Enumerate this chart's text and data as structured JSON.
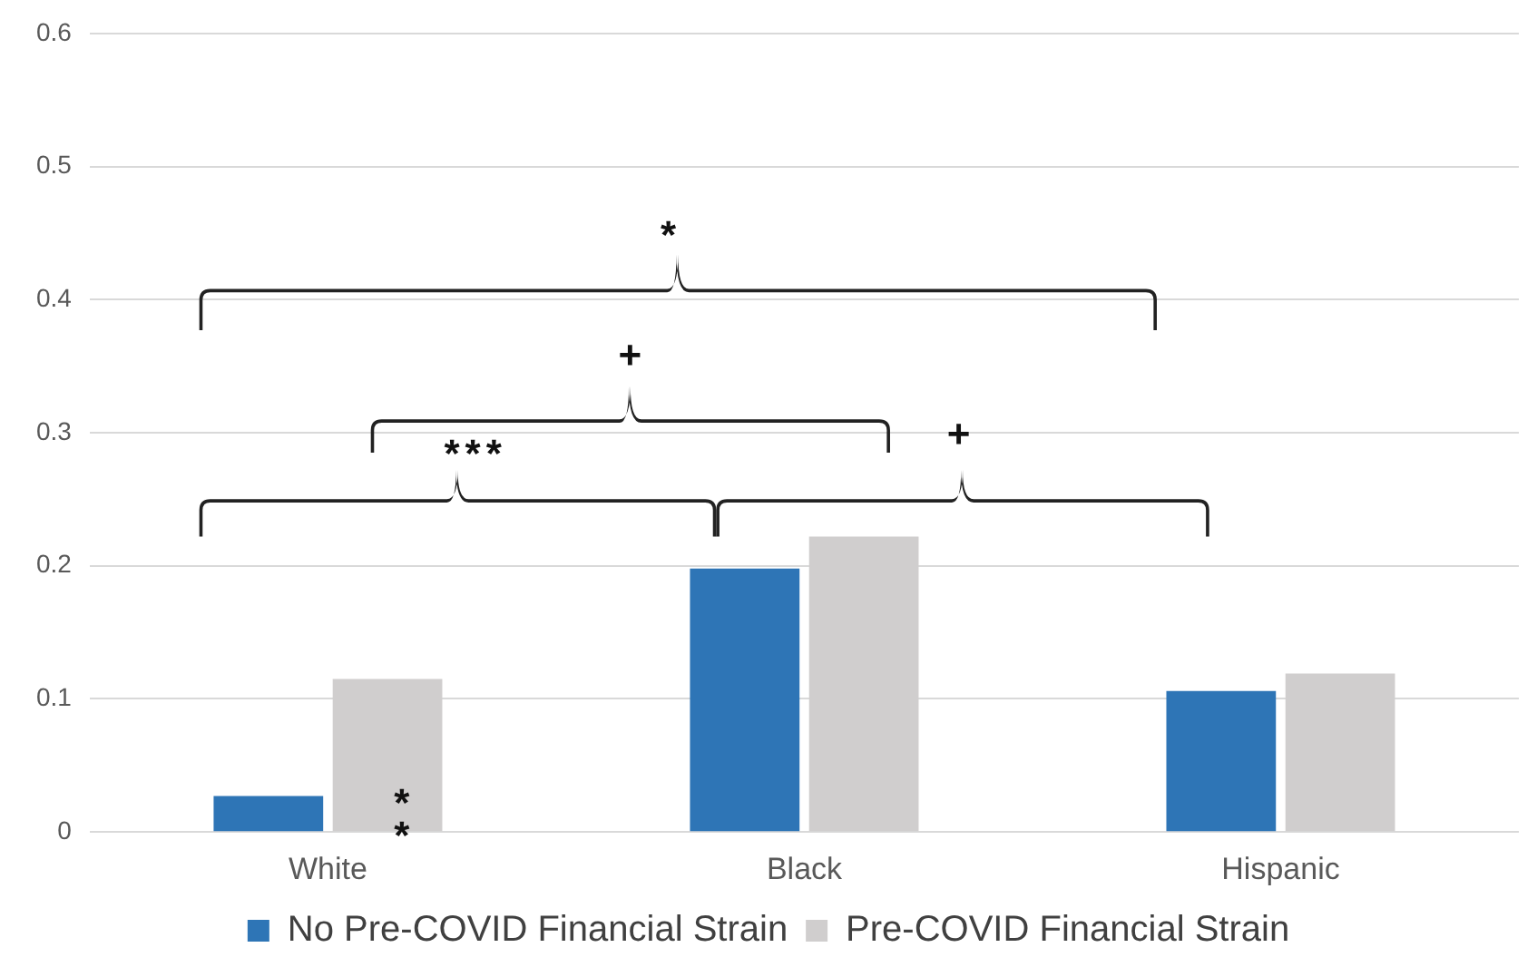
{
  "chart_data": {
    "type": "bar",
    "categories": [
      "White",
      "Black",
      "Hispanic"
    ],
    "series": [
      {
        "name": "No Pre-COVID Financial Strain",
        "color": "#2e75b6",
        "values": [
          0.027,
          0.198,
          0.106
        ]
      },
      {
        "name": "Pre-COVID Financial Strain",
        "color": "#d0cece",
        "values": [
          0.115,
          0.222,
          0.119
        ]
      }
    ],
    "ylim": [
      0,
      0.6
    ],
    "yticks": [
      0,
      0.1,
      0.2,
      0.3,
      0.4,
      0.5,
      0.6
    ],
    "grid": "y",
    "legend": "bottom",
    "annotations": [
      "***",
      "+",
      "*",
      "+",
      "**"
    ]
  }
}
